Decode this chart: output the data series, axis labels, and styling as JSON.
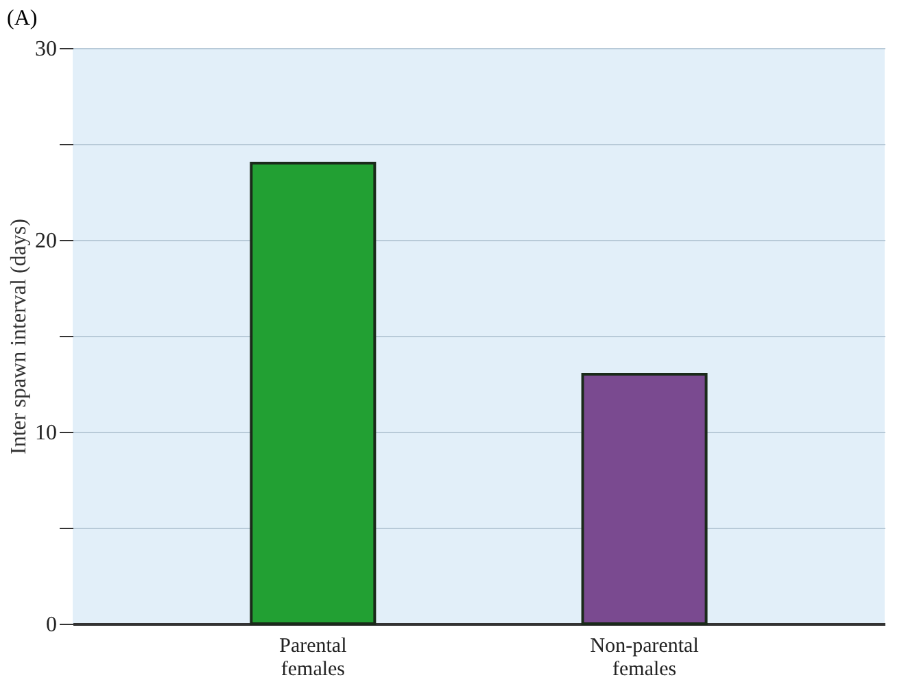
{
  "chart_data": {
    "type": "bar",
    "title": "(A)",
    "ylabel": "Inter spawn interval (days)",
    "categories": [
      "Parental females",
      "Non-parental females"
    ],
    "values": [
      24,
      13
    ],
    "colors": [
      "#22a033",
      "#7a4a90"
    ],
    "ylim": [
      0,
      30
    ],
    "yticks": [
      0,
      {
        "value": 5,
        "label": null
      },
      10,
      {
        "value": 15,
        "label": null
      },
      20,
      {
        "value": 25,
        "label": null
      },
      30
    ],
    "grid": "y"
  }
}
